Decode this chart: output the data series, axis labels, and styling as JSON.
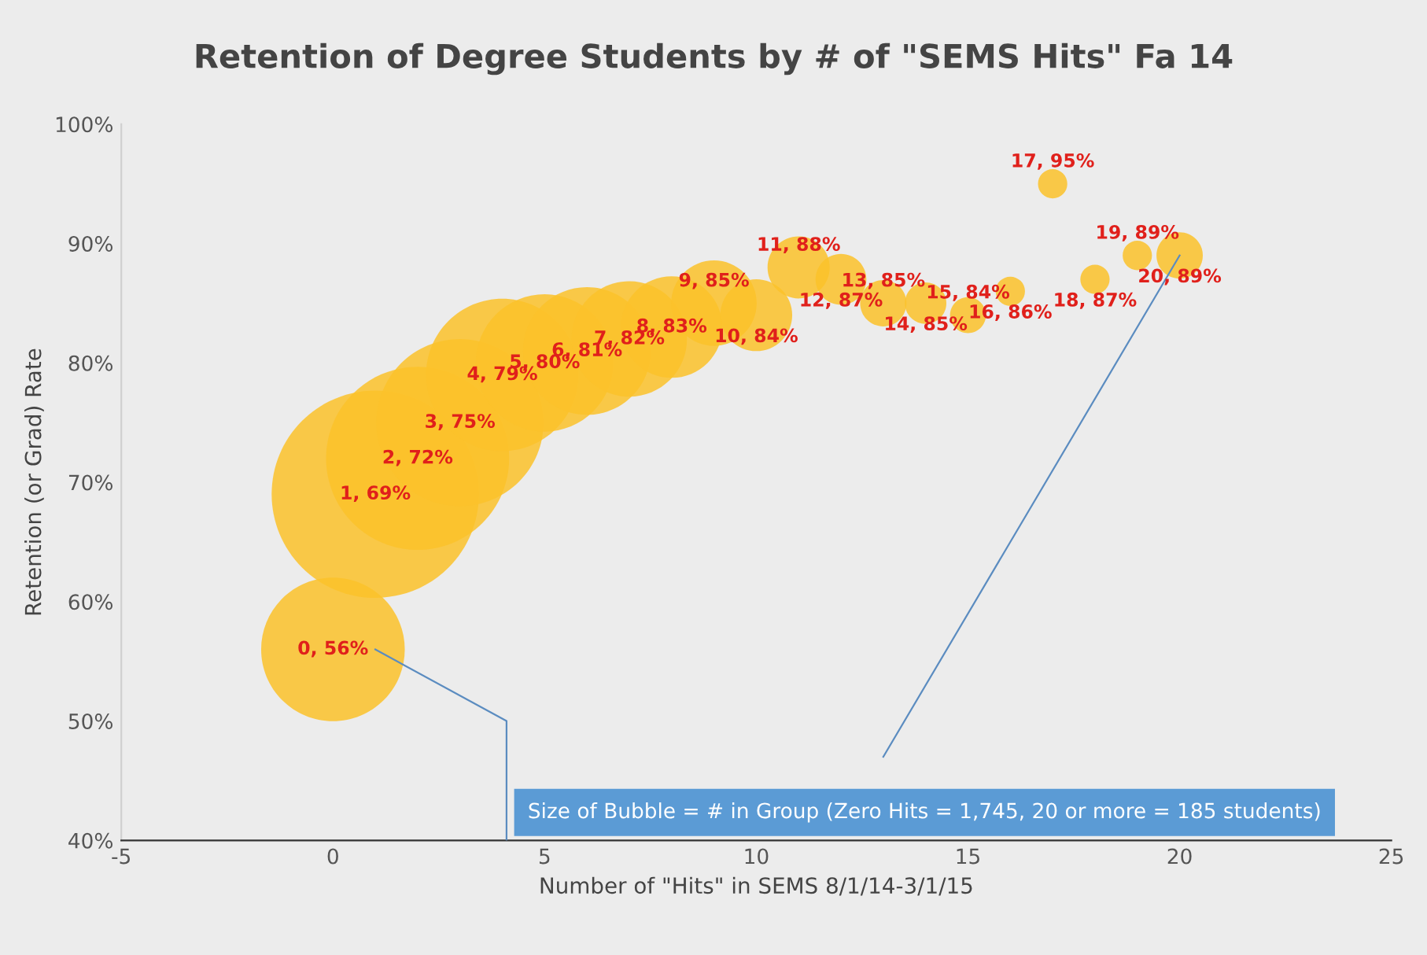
{
  "chart_data": {
    "type": "bubble",
    "title": "Retention of Degree Students by # of \"SEMS Hits\" Fa 14",
    "xlabel": "Number of \"Hits\" in SEMS 8/1/14-3/1/15",
    "ylabel": "Retention (or Grad) Rate",
    "x": [
      0,
      1,
      2,
      3,
      4,
      5,
      6,
      7,
      8,
      9,
      10,
      11,
      12,
      13,
      14,
      15,
      16,
      17,
      18,
      19,
      20
    ],
    "series": [
      {
        "color": "#fcc22a",
        "values": [
          56,
          69,
          72,
          75,
          79,
          80,
          81,
          82,
          83,
          85,
          84,
          88,
          87,
          85,
          85,
          84,
          86,
          95,
          87,
          89,
          89
        ],
        "sizes": [
          0.48,
          1,
          0.78,
          0.65,
          0.54,
          0.44,
          0.38,
          0.31,
          0.24,
          0.17,
          0.12,
          0.09,
          0.06,
          0.05,
          0.04,
          0.03,
          0.02,
          0.02,
          0.02,
          0.02,
          0.05
        ],
        "value_labels": [
          "0, 56%",
          "1, 69%",
          "2, 72%",
          "3, 75%",
          "4, 79%",
          "5, 80%",
          "6, 81%",
          "7, 82%",
          "8, 83%",
          "9, 85%",
          "10, 84%",
          "11, 88%",
          "12, 87%",
          "13, 85%",
          "14, 85%",
          "15, 84%",
          "16, 86%",
          "17, 95%",
          "18, 87%",
          "19, 89%",
          "20, 89%"
        ]
      }
    ],
    "xlim": [
      -5,
      25
    ],
    "xticks": [
      -5,
      0,
      5,
      10,
      15,
      20,
      25
    ],
    "ylim": [
      40,
      100
    ],
    "yticks": [
      {
        "value": 40,
        "label": "40%"
      },
      {
        "value": 50,
        "label": "50%"
      },
      {
        "value": 60,
        "label": "60%"
      },
      {
        "value": 70,
        "label": "70%"
      },
      {
        "value": 80,
        "label": "80%"
      },
      {
        "value": 90,
        "label": "90%"
      },
      {
        "value": 100,
        "label": "100%"
      }
    ],
    "grid": false,
    "legend": false,
    "annotations": [
      "Size of Bubble = # in Group (Zero Hits = 1,745, 20 or more = 185 students)"
    ]
  }
}
